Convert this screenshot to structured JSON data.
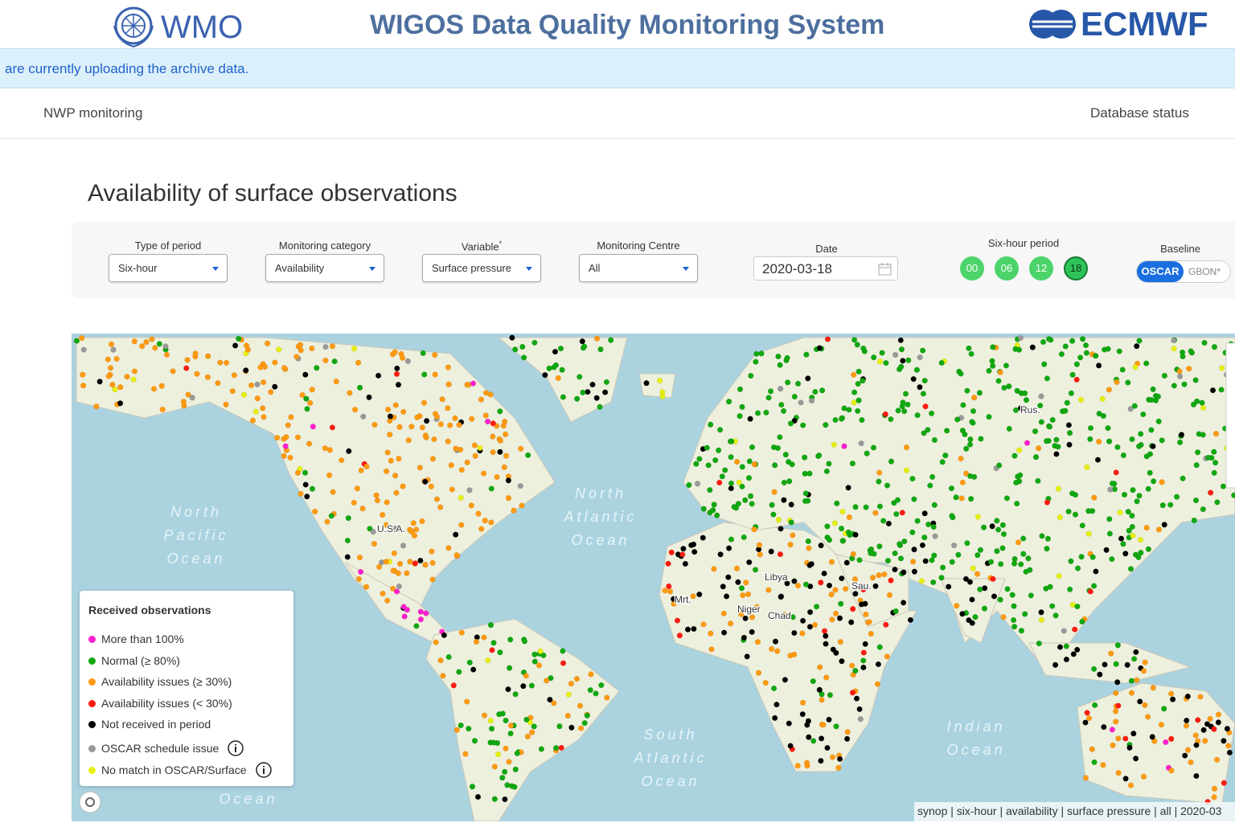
{
  "header": {
    "org_left": "WMO",
    "title": "WIGOS Data Quality Monitoring System",
    "org_right": "ECMWF"
  },
  "banner": "are currently uploading the archive data.",
  "nav": {
    "left": "NWP monitoring",
    "right": "Database status"
  },
  "page_title": "Availability of surface observations",
  "filters": [
    {
      "label": "Type of period",
      "value": "Six-hour"
    },
    {
      "label": "Monitoring category",
      "value": "Availability"
    },
    {
      "label": "Variable",
      "marker": "*",
      "value": "Surface pressure"
    },
    {
      "label": "Monitoring Centre",
      "value": "All"
    }
  ],
  "date": {
    "label": "Date",
    "value": "2020-03-18"
  },
  "six_hour_period": {
    "label": "Six-hour period",
    "options": [
      "00",
      "06",
      "12",
      "18"
    ]
  },
  "baseline": {
    "label": "Baseline",
    "options": [
      "OSCAR",
      "GBON*"
    ]
  },
  "legend": {
    "title": "Received observations",
    "items": [
      {
        "label": "More than 100%",
        "color": "#ff1fd0"
      },
      {
        "label": "Normal (≥ 80%)",
        "color": "#10a810"
      },
      {
        "label": "Availability issues (≥ 30%)",
        "color": "#ff9a10"
      },
      {
        "label": "Availability issues (< 30%)",
        "color": "#ff1a10"
      },
      {
        "label": "Not received in period",
        "color": "#000000"
      },
      {
        "label": "OSCAR schedule issue",
        "color": "#999999"
      },
      {
        "label": "No match in OSCAR/Surface",
        "color": "#e6f010"
      }
    ]
  },
  "ocean_labels": [
    [
      "North",
      "Pacific",
      "Ocean"
    ],
    [
      "North",
      "Atlantic",
      "Ocean"
    ],
    [
      "South",
      "Atlantic",
      "Ocean"
    ],
    [
      "Indian",
      "Ocean"
    ],
    [
      "Ocean"
    ]
  ],
  "country_labels": [
    "U.S.A.",
    "Libya",
    "Niger",
    "Chad",
    "Rus.",
    "Mrt.",
    "Sau."
  ],
  "attribution": "synop | six-hour | availability | surface pressure | all | 2020-03"
}
